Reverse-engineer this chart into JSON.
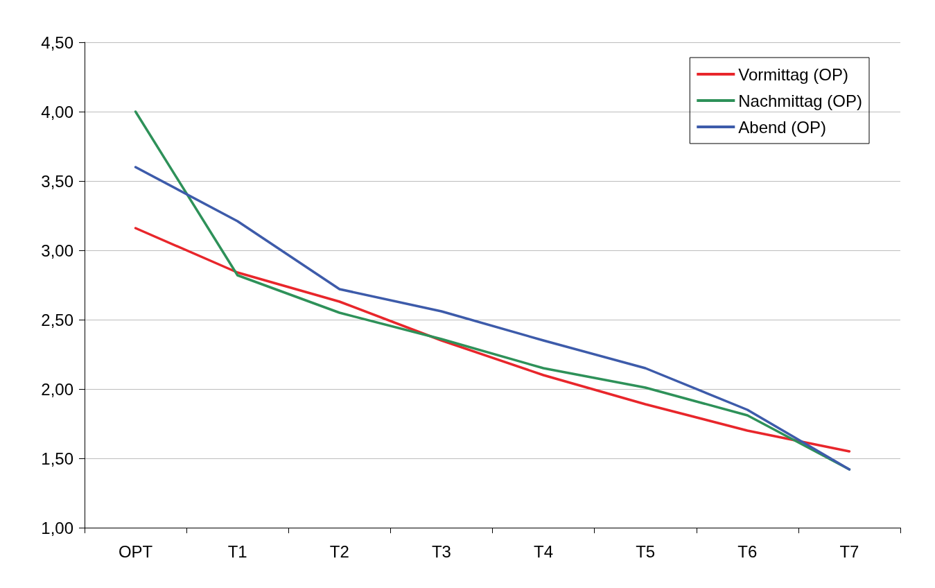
{
  "chart_data": {
    "type": "line",
    "categories": [
      "OPT",
      "T1",
      "T2",
      "T3",
      "T4",
      "T5",
      "T6",
      "T7"
    ],
    "series": [
      {
        "name": "Vormittag (OP)",
        "color": "#e8262b",
        "values": [
          3.16,
          2.84,
          2.63,
          2.35,
          2.1,
          1.89,
          1.7,
          1.55
        ]
      },
      {
        "name": "Nachmittag (OP)",
        "color": "#2e9159",
        "values": [
          4.0,
          2.82,
          2.55,
          2.36,
          2.15,
          2.01,
          1.81,
          1.42
        ]
      },
      {
        "name": "Abend (OP)",
        "color": "#3d5baa",
        "values": [
          3.6,
          3.21,
          2.72,
          2.56,
          2.35,
          2.15,
          1.85,
          1.42
        ]
      }
    ],
    "ylim": [
      1,
      4.5
    ],
    "yticks": [
      {
        "value": 1,
        "label": "1,00"
      },
      {
        "value": 1.5,
        "label": "1,50"
      },
      {
        "value": 2,
        "label": "2,00"
      },
      {
        "value": 2.5,
        "label": "2,50"
      },
      {
        "value": 3,
        "label": "3,00"
      },
      {
        "value": 3.5,
        "label": "3,50"
      },
      {
        "value": 4,
        "label": "4,00"
      },
      {
        "value": 4.5,
        "label": "4,50"
      }
    ],
    "grid": "y",
    "legend": "top right",
    "marker": "none",
    "line_style": "solid"
  }
}
